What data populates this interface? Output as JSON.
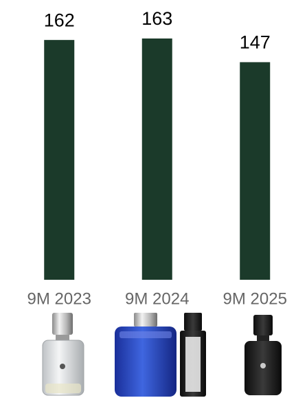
{
  "chart_data": {
    "type": "bar",
    "categories": [
      "9M 2023",
      "9M 2024",
      "9M 2025"
    ],
    "values": [
      162,
      163,
      147
    ],
    "color": "#1b3a2a"
  }
}
